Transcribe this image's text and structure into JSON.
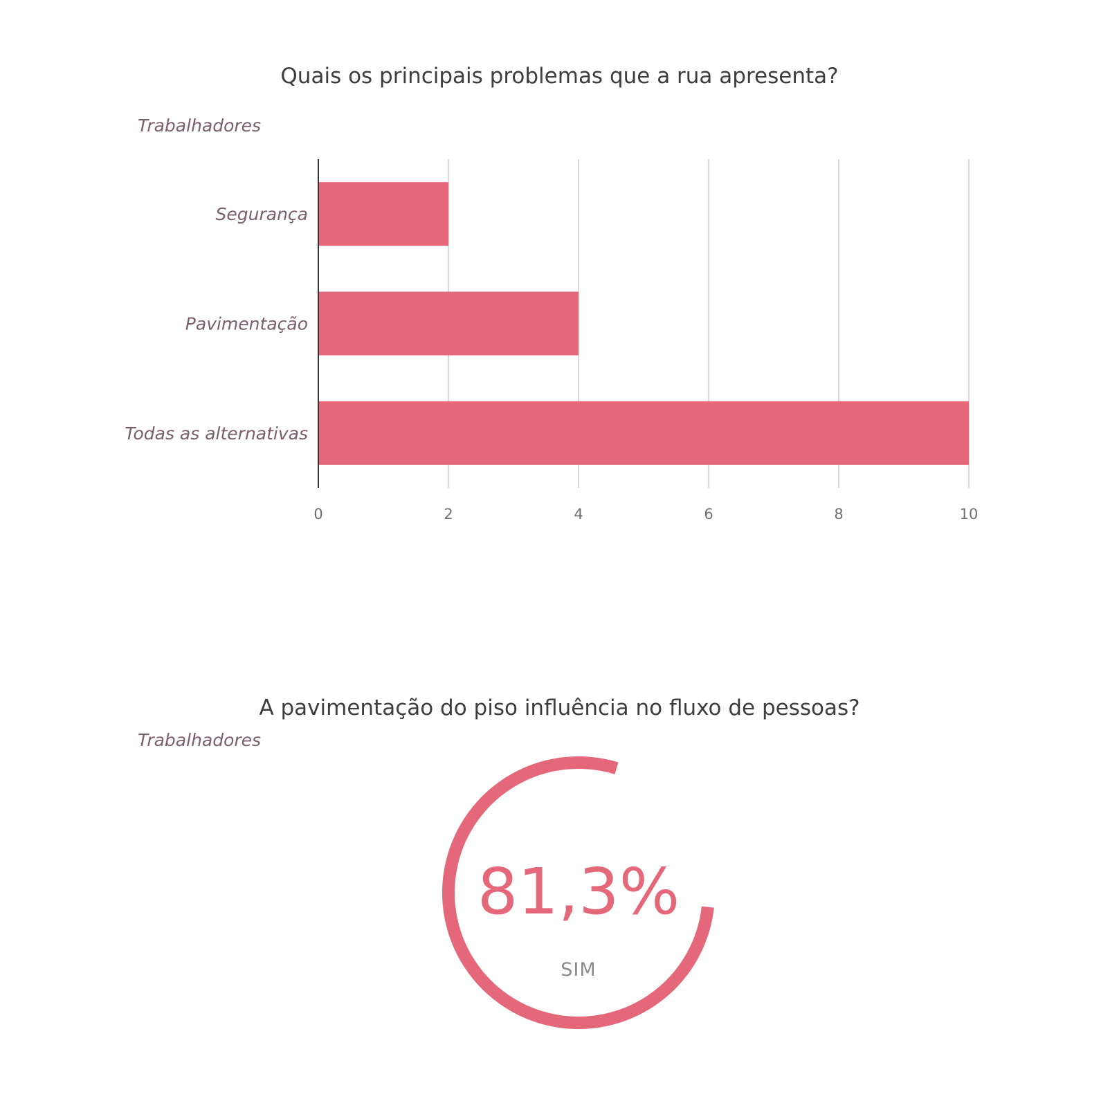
{
  "chart_data": [
    {
      "type": "bar",
      "orientation": "horizontal",
      "title": "Quais os principais problemas que a rua apresenta?",
      "subtitle": "Trabalhadores",
      "categories": [
        "Segurança",
        "Pavimentação",
        "Todas as alternativas"
      ],
      "values": [
        2,
        4,
        10
      ],
      "xlim": [
        0,
        10
      ],
      "xticks": [
        "0",
        "2",
        "4",
        "6",
        "8",
        "10"
      ],
      "grid": true,
      "color": "#e5677a"
    },
    {
      "type": "gauge",
      "title": "A pavimentação do piso influência no fluxo de pessoas?",
      "subtitle": "Trabalhadores",
      "value": 81.3,
      "value_label": "81,3%",
      "label": "SIM",
      "color": "#e5677a"
    }
  ]
}
